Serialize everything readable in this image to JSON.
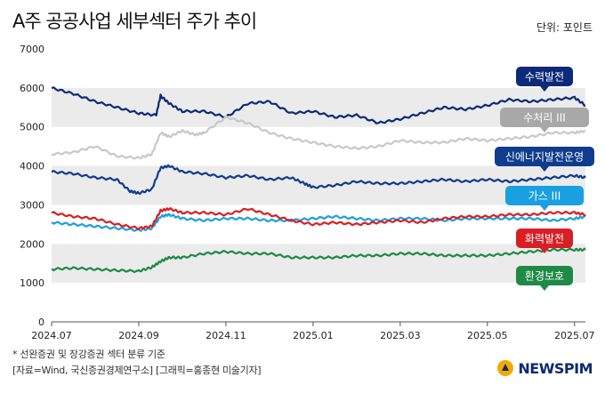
{
  "header": {
    "title": "A주 공공사업 세부섹터 주가 추이",
    "unit": "단위: 포인트"
  },
  "footnotes": {
    "line1": "* 선완증권 및 장강증권 섹터 분류 기준",
    "line2": "[자료=Wind, 국신증권경제연구소] [그래픽=홍종현 미술기자]"
  },
  "logo": {
    "text": "NEWSPIM",
    "color": "#0d2a6e"
  },
  "chart_data": {
    "type": "line",
    "title": "A주 공공사업 세부섹터 주가 추이",
    "ylabel": "단위: 포인트",
    "ylim": [
      0,
      7000
    ],
    "yticks": [
      0,
      1000,
      2000,
      3000,
      4000,
      5000,
      6000,
      7000
    ],
    "y_tick_labels": [
      "0",
      "1000",
      "2000",
      "3000",
      "4000",
      "5000",
      "6000",
      "7000"
    ],
    "xlim": [
      0,
      12.25
    ],
    "x_ticks": [
      0,
      2,
      4,
      6,
      8,
      10,
      12
    ],
    "x_tick_labels": [
      "2024.07",
      "2024.09",
      "2024.11",
      "2025.01",
      "2025.03",
      "2025.05",
      "2025.07"
    ],
    "grid": "horizontal bands",
    "legend": "inline labels at right",
    "series": [
      {
        "name": "수력발전",
        "color": "#0c2a78",
        "label_bg": "#0c2a78",
        "label_color": "#ffffff",
        "x": [
          0,
          0.5,
          1.0,
          1.5,
          2.0,
          2.4,
          2.5,
          2.7,
          3.0,
          3.5,
          4.0,
          4.5,
          5.0,
          5.5,
          6.0,
          6.5,
          7.0,
          7.5,
          8.0,
          8.5,
          9.0,
          9.5,
          10.0,
          10.5,
          11.0,
          11.5,
          12.0,
          12.25
        ],
        "values": [
          6000,
          5850,
          5650,
          5500,
          5350,
          5300,
          5800,
          5600,
          5400,
          5400,
          5250,
          5600,
          5650,
          5350,
          5400,
          5250,
          5300,
          5100,
          5200,
          5350,
          5500,
          5450,
          5550,
          5700,
          5650,
          5700,
          5750,
          5550
        ]
      },
      {
        "name": "수처리 III",
        "color": "#c8c8c8",
        "label_bg": "#a8a8a8",
        "label_color": "#ffffff",
        "x": [
          0,
          0.5,
          1.0,
          1.5,
          2.0,
          2.3,
          2.5,
          2.7,
          3.0,
          3.3,
          3.5,
          4.0,
          4.5,
          5.0,
          5.5,
          6.0,
          6.5,
          7.0,
          7.5,
          8.0,
          8.5,
          9.0,
          9.5,
          10.0,
          10.5,
          11.0,
          11.5,
          12.0,
          12.25
        ],
        "values": [
          4300,
          4350,
          4500,
          4250,
          4200,
          4300,
          4850,
          4750,
          4900,
          4800,
          4850,
          5250,
          5100,
          4850,
          4700,
          4600,
          4500,
          4450,
          4500,
          4650,
          4600,
          4600,
          4700,
          4650,
          4700,
          4750,
          4850,
          4850,
          4900
        ]
      },
      {
        "name": "신에너지발전운영",
        "color": "#0f3c8c",
        "label_bg": "#0f3c8c",
        "label_color": "#ffffff",
        "x": [
          0,
          0.5,
          1.0,
          1.5,
          1.8,
          2.0,
          2.3,
          2.5,
          2.7,
          3.0,
          3.5,
          4.0,
          4.5,
          5.0,
          5.5,
          5.8,
          6.0,
          6.5,
          7.0,
          7.5,
          8.0,
          8.5,
          9.0,
          9.5,
          10.0,
          10.5,
          11.0,
          11.5,
          12.0,
          12.25
        ],
        "values": [
          3850,
          3800,
          3700,
          3650,
          3350,
          3300,
          3400,
          3950,
          4000,
          3850,
          3800,
          3700,
          3750,
          3650,
          3700,
          3550,
          3450,
          3500,
          3600,
          3550,
          3550,
          3600,
          3650,
          3600,
          3650,
          3600,
          3650,
          3700,
          3750,
          3700
        ]
      },
      {
        "name": "가스 III",
        "color": "#1aa0e0",
        "label_bg": "#1aa0e0",
        "label_color": "#ffffff",
        "x": [
          0,
          0.5,
          1.0,
          1.5,
          2.0,
          2.3,
          2.5,
          2.7,
          3.0,
          3.5,
          4.0,
          4.5,
          5.0,
          5.5,
          6.0,
          6.5,
          7.0,
          7.5,
          8.0,
          8.5,
          9.0,
          9.5,
          10.0,
          10.5,
          11.0,
          11.5,
          12.0,
          12.25
        ],
        "values": [
          2550,
          2500,
          2450,
          2400,
          2350,
          2400,
          2700,
          2750,
          2650,
          2600,
          2650,
          2650,
          2600,
          2600,
          2650,
          2700,
          2650,
          2600,
          2650,
          2650,
          2600,
          2650,
          2650,
          2650,
          2650,
          2600,
          2650,
          2700
        ]
      },
      {
        "name": "화력발전",
        "color": "#d81f26",
        "label_bg": "#d81f26",
        "label_color": "#ffffff",
        "x": [
          0,
          0.5,
          1.0,
          1.5,
          2.0,
          2.3,
          2.5,
          2.7,
          3.0,
          3.5,
          4.0,
          4.5,
          5.0,
          5.5,
          6.0,
          6.5,
          7.0,
          7.5,
          8.0,
          8.5,
          9.0,
          9.5,
          10.0,
          10.5,
          11.0,
          11.5,
          12.0,
          12.25
        ],
        "values": [
          2800,
          2700,
          2650,
          2500,
          2400,
          2450,
          2850,
          2900,
          2800,
          2800,
          2750,
          2900,
          2750,
          2600,
          2500,
          2550,
          2500,
          2550,
          2600,
          2550,
          2650,
          2700,
          2700,
          2750,
          2750,
          2800,
          2800,
          2750
        ]
      },
      {
        "name": "환경보호",
        "color": "#1e8a46",
        "label_bg": "#1e8a46",
        "label_color": "#ffffff",
        "x": [
          0,
          0.5,
          1.0,
          1.5,
          2.0,
          2.3,
          2.5,
          2.7,
          3.0,
          3.5,
          4.0,
          4.5,
          5.0,
          5.5,
          6.0,
          6.5,
          7.0,
          7.5,
          8.0,
          8.5,
          9.0,
          9.5,
          10.0,
          10.5,
          11.0,
          11.5,
          12.0,
          12.25
        ],
        "values": [
          1350,
          1380,
          1350,
          1320,
          1300,
          1400,
          1550,
          1650,
          1650,
          1750,
          1800,
          1750,
          1750,
          1650,
          1650,
          1650,
          1700,
          1700,
          1750,
          1750,
          1700,
          1700,
          1700,
          1750,
          1800,
          1850,
          1850,
          1850
        ]
      }
    ]
  }
}
